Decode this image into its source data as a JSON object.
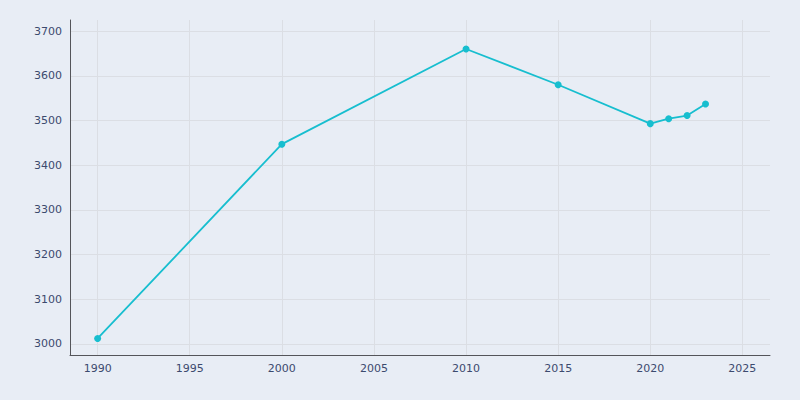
{
  "chart_data": {
    "type": "line",
    "x": [
      1990,
      2000,
      2010,
      2015,
      2020,
      2021,
      2022,
      2023
    ],
    "values": [
      3012,
      3447,
      3660,
      3580,
      3493,
      3504,
      3511,
      3537
    ],
    "color": "#17becf",
    "marker": "circle",
    "xlim": [
      1988.5,
      2026.5
    ],
    "xticks": [
      1990,
      1995,
      2000,
      2005,
      2010,
      2015,
      2020,
      2025
    ],
    "ylim": [
      2975,
      3725
    ],
    "yticks": [
      3000,
      3100,
      3200,
      3300,
      3400,
      3500,
      3600,
      3700
    ],
    "grid": true
  }
}
